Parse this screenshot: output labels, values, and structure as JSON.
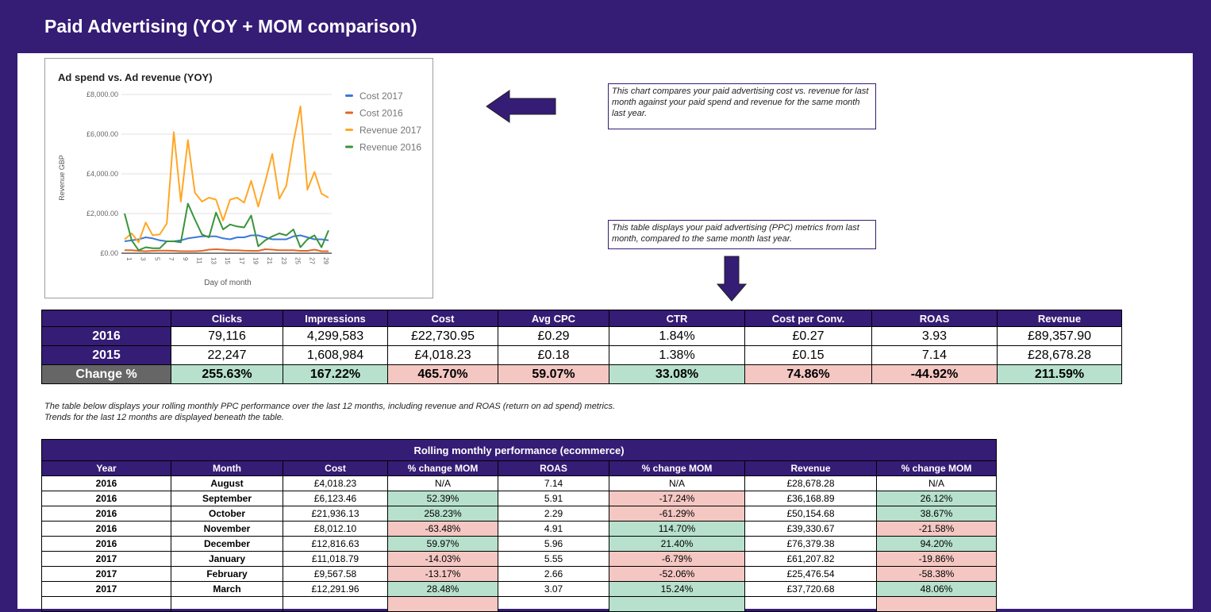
{
  "header": {
    "title": "Paid Advertising (YOY + MOM comparison)"
  },
  "chart_data": {
    "type": "line",
    "title": "Ad spend vs. Ad revenue (YOY)",
    "xlabel": "Day of month",
    "ylabel": "Revenue GBP",
    "ylim": [
      0,
      8000
    ],
    "yticks": [
      "£0.00",
      "£2,000.00",
      "£4,000.00",
      "£6,000.00",
      "£8,000.00"
    ],
    "ytick_values": [
      0,
      2000,
      4000,
      6000,
      8000
    ],
    "xticks": [
      "1",
      "3",
      "5",
      "7",
      "9",
      "11",
      "13",
      "15",
      "17",
      "19",
      "21",
      "23",
      "25",
      "27",
      "29"
    ],
    "x": [
      1,
      2,
      3,
      4,
      5,
      6,
      7,
      8,
      9,
      10,
      11,
      12,
      13,
      14,
      15,
      16,
      17,
      18,
      19,
      20,
      21,
      22,
      23,
      24,
      25,
      26,
      27,
      28,
      29,
      30
    ],
    "grid": true,
    "legend_position": "right",
    "series": [
      {
        "name": "Cost 2017",
        "color": "#3c78d8",
        "values": [
          600,
          650,
          700,
          800,
          750,
          650,
          600,
          600,
          650,
          750,
          800,
          850,
          850,
          850,
          750,
          700,
          800,
          800,
          900,
          900,
          800,
          700,
          700,
          700,
          850,
          900,
          800,
          700,
          700,
          650
        ]
      },
      {
        "name": "Cost 2016",
        "color": "#e06629",
        "values": [
          150,
          150,
          120,
          100,
          120,
          130,
          130,
          120,
          100,
          100,
          100,
          120,
          180,
          200,
          180,
          150,
          150,
          130,
          120,
          120,
          200,
          180,
          150,
          150,
          150,
          120,
          120,
          180,
          100,
          100
        ]
      },
      {
        "name": "Revenue 2017",
        "color": "#ffa726",
        "values": [
          700,
          1000,
          550,
          1550,
          900,
          950,
          1500,
          6100,
          2600,
          5700,
          3050,
          2600,
          2800,
          2700,
          1650,
          2700,
          2800,
          2550,
          3650,
          2350,
          3600,
          5000,
          2750,
          3400,
          5600,
          7400,
          3200,
          4100,
          3000,
          2800
        ]
      },
      {
        "name": "Revenue 2016",
        "color": "#38943a",
        "values": [
          2000,
          650,
          150,
          300,
          250,
          250,
          600,
          600,
          550,
          2500,
          1700,
          950,
          800,
          2050,
          1200,
          1450,
          1350,
          1300,
          1900,
          350,
          650,
          850,
          1000,
          900,
          1200,
          300,
          700,
          900,
          300,
          1150
        ]
      }
    ]
  },
  "notes": {
    "chart_note": "This chart compares your paid advertising cost vs. revenue for last month against your paid spend and revenue for the same month last year.",
    "table_note": "This table displays your paid advertising (PPC) metrics from last month, compared to the same month last year.",
    "rolling_note": "The table below displays your rolling monthly PPC performance over the last 12 months, including revenue and ROAS (return on ad spend) metrics. Trends for the last 12 months are displayed beneath the table."
  },
  "arrows": {
    "left": "arrow-left-icon",
    "down": "arrow-down-icon",
    "color": "#351c75"
  },
  "yoy_table": {
    "headers": [
      "Clicks",
      "Impressions",
      "Cost",
      "Avg CPC",
      "CTR",
      "Cost per Conv.",
      "ROAS",
      "Revenue"
    ],
    "rows": [
      {
        "label": "2016",
        "values": [
          "79,116",
          "4,299,583",
          "£22,730.95",
          "£0.29",
          "1.84%",
          "£0.27",
          "3.93",
          "£89,357.90"
        ]
      },
      {
        "label": "2015",
        "values": [
          "22,247",
          "1,608,984",
          "£4,018.23",
          "£0.18",
          "1.38%",
          "£0.15",
          "7.14",
          "£28,678.28"
        ]
      }
    ],
    "change": {
      "label": "Change %",
      "values": [
        "255.63%",
        "167.22%",
        "465.70%",
        "59.07%",
        "33.08%",
        "74.86%",
        "-44.92%",
        "211.59%"
      ],
      "status": [
        "good",
        "good",
        "bad",
        "bad",
        "good",
        "bad",
        "bad",
        "good"
      ]
    }
  },
  "rolling_table": {
    "title": "Rolling monthly performance (ecommerce)",
    "headers": [
      "Year",
      "Month",
      "Cost",
      "% change MOM",
      "ROAS",
      "% change MOM",
      "Revenue",
      "% change MOM"
    ],
    "rows": [
      {
        "year": "2016",
        "month": "August",
        "cost": "£4,018.23",
        "cost_mom": "N/A",
        "cost_status": "none",
        "roas": "7.14",
        "roas_mom": "N/A",
        "roas_status": "none",
        "revenue": "£28,678.28",
        "rev_mom": "N/A",
        "rev_status": "none"
      },
      {
        "year": "2016",
        "month": "September",
        "cost": "£6,123.46",
        "cost_mom": "52.39%",
        "cost_status": "good",
        "roas": "5.91",
        "roas_mom": "-17.24%",
        "roas_status": "bad",
        "revenue": "£36,168.89",
        "rev_mom": "26.12%",
        "rev_status": "good"
      },
      {
        "year": "2016",
        "month": "October",
        "cost": "£21,936.13",
        "cost_mom": "258.23%",
        "cost_status": "good",
        "roas": "2.29",
        "roas_mom": "-61.29%",
        "roas_status": "bad",
        "revenue": "£50,154.68",
        "rev_mom": "38.67%",
        "rev_status": "good"
      },
      {
        "year": "2016",
        "month": "November",
        "cost": "£8,012.10",
        "cost_mom": "-63.48%",
        "cost_status": "bad",
        "roas": "4.91",
        "roas_mom": "114.70%",
        "roas_status": "good",
        "revenue": "£39,330.67",
        "rev_mom": "-21.58%",
        "rev_status": "bad"
      },
      {
        "year": "2016",
        "month": "December",
        "cost": "£12,816.63",
        "cost_mom": "59.97%",
        "cost_status": "good",
        "roas": "5.96",
        "roas_mom": "21.40%",
        "roas_status": "good",
        "revenue": "£76,379.38",
        "rev_mom": "94.20%",
        "rev_status": "good"
      },
      {
        "year": "2017",
        "month": "January",
        "cost": "£11,018.79",
        "cost_mom": "-14.03%",
        "cost_status": "bad",
        "roas": "5.55",
        "roas_mom": "-6.79%",
        "roas_status": "bad",
        "revenue": "£61,207.82",
        "rev_mom": "-19.86%",
        "rev_status": "bad"
      },
      {
        "year": "2017",
        "month": "February",
        "cost": "£9,567.58",
        "cost_mom": "-13.17%",
        "cost_status": "bad",
        "roas": "2.66",
        "roas_mom": "-52.06%",
        "roas_status": "bad",
        "revenue": "£25,476.54",
        "rev_mom": "-58.38%",
        "rev_status": "bad"
      },
      {
        "year": "2017",
        "month": "March",
        "cost": "£12,291.96",
        "cost_mom": "28.48%",
        "cost_status": "good",
        "roas": "3.07",
        "roas_mom": "15.24%",
        "roas_status": "good",
        "revenue": "£37,720.68",
        "rev_mom": "48.06%",
        "rev_status": "good"
      },
      {
        "year": "",
        "month": "",
        "cost": "",
        "cost_mom": "",
        "cost_status": "bad",
        "roas": "",
        "roas_mom": "",
        "roas_status": "good",
        "revenue": "",
        "rev_mom": "",
        "rev_status": "bad"
      }
    ]
  }
}
